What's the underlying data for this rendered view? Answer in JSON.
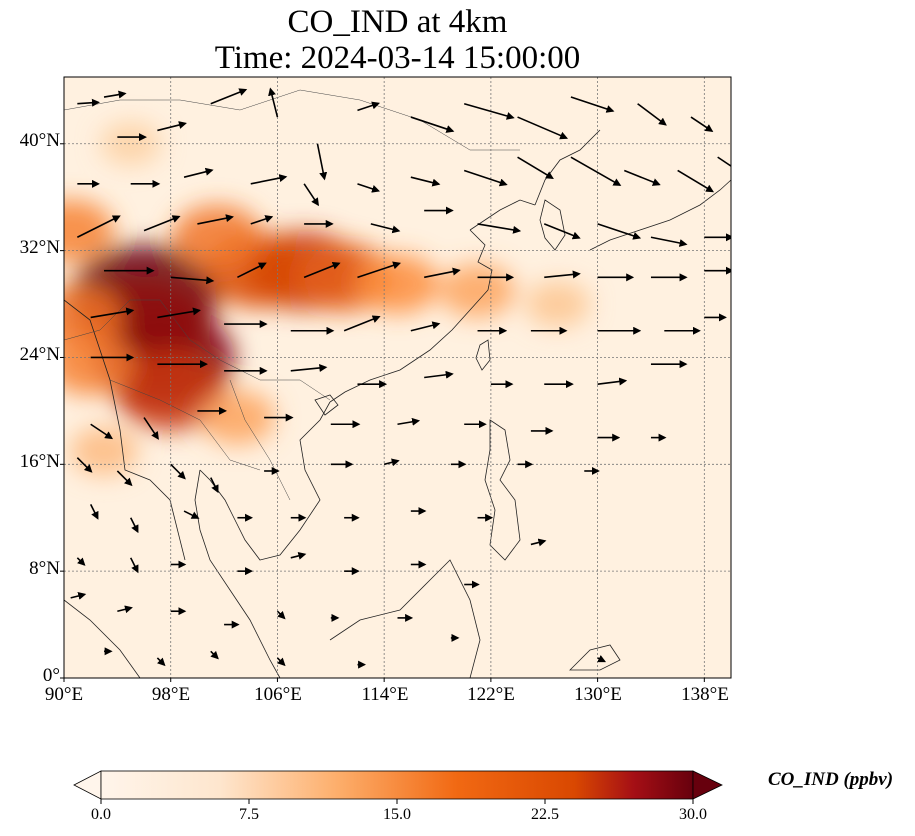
{
  "title": {
    "line1": "CO_IND at 4km",
    "line2": "Time: 2024-03-14 15:00:00"
  },
  "map": {
    "projection": "PlateCarree",
    "lon_range": [
      90,
      140
    ],
    "lat_range": [
      0,
      45
    ],
    "gridlines": true,
    "lat_ticks": [
      {
        "value": 0,
        "label": "0°"
      },
      {
        "value": 8,
        "label": "8°N"
      },
      {
        "value": 16,
        "label": "16°N"
      },
      {
        "value": 24,
        "label": "24°N"
      },
      {
        "value": 32,
        "label": "32°N"
      },
      {
        "value": 40,
        "label": "40°N"
      }
    ],
    "lon_ticks": [
      {
        "value": 90,
        "label": "90°E"
      },
      {
        "value": 98,
        "label": "98°E"
      },
      {
        "value": 106,
        "label": "106°E"
      },
      {
        "value": 114,
        "label": "114°E"
      },
      {
        "value": 122,
        "label": "122°E"
      },
      {
        "value": 130,
        "label": "130°E"
      },
      {
        "value": 138,
        "label": "138°E"
      }
    ],
    "colormap": [
      "#fff5eb",
      "#fdd0a2",
      "#fd8d3c",
      "#d94801",
      "#a50f15",
      "#67000d"
    ],
    "concentration_hotspots_ppbv": [
      {
        "lon": 96,
        "lat": 28.5,
        "value": 30
      },
      {
        "lon": 97.5,
        "lat": 24,
        "value": 28
      },
      {
        "lon": 96,
        "lat": 26.5,
        "value": 26
      },
      {
        "lon": 98,
        "lat": 21.5,
        "value": 20
      },
      {
        "lon": 108,
        "lat": 30.5,
        "value": 20
      },
      {
        "lon": 104.5,
        "lat": 30.5,
        "value": 18
      },
      {
        "lon": 111,
        "lat": 30,
        "value": 16
      },
      {
        "lon": 101.5,
        "lat": 33,
        "value": 14
      },
      {
        "lon": 90.5,
        "lat": 33.5,
        "value": 13
      },
      {
        "lon": 91,
        "lat": 27,
        "value": 14
      },
      {
        "lon": 115,
        "lat": 29.5,
        "value": 12
      },
      {
        "lon": 121,
        "lat": 29,
        "value": 10
      },
      {
        "lon": 92,
        "lat": 23.5,
        "value": 13
      },
      {
        "lon": 103,
        "lat": 19.5,
        "value": 10
      },
      {
        "lon": 127,
        "lat": 28,
        "value": 7
      },
      {
        "lon": 93,
        "lat": 17,
        "value": 8
      },
      {
        "lon": 95,
        "lat": 40,
        "value": 6
      }
    ],
    "wind_arrows": [
      {
        "lon": 91,
        "lat": 43,
        "u": 3,
        "v": 0.2
      },
      {
        "lon": 93,
        "lat": 43.5,
        "u": 3,
        "v": 0.5
      },
      {
        "lon": 94,
        "lat": 40.5,
        "u": 4,
        "v": 0
      },
      {
        "lon": 97,
        "lat": 41,
        "u": 4,
        "v": 1
      },
      {
        "lon": 101,
        "lat": 43,
        "u": 5,
        "v": 2
      },
      {
        "lon": 106,
        "lat": 42,
        "u": -1,
        "v": 4
      },
      {
        "lon": 109,
        "lat": 40,
        "u": 1,
        "v": -5
      },
      {
        "lon": 112,
        "lat": 42.5,
        "u": 3,
        "v": 1
      },
      {
        "lon": 116,
        "lat": 42,
        "u": 6,
        "v": -2
      },
      {
        "lon": 120,
        "lat": 43,
        "u": 7,
        "v": -2
      },
      {
        "lon": 124,
        "lat": 42,
        "u": 7,
        "v": -3
      },
      {
        "lon": 128,
        "lat": 43.5,
        "u": 6,
        "v": -2
      },
      {
        "lon": 133,
        "lat": 43,
        "u": 4,
        "v": -3
      },
      {
        "lon": 137,
        "lat": 42,
        "u": 3,
        "v": -2
      },
      {
        "lon": 91,
        "lat": 37,
        "u": 3,
        "v": 0
      },
      {
        "lon": 95,
        "lat": 37,
        "u": 4,
        "v": 0
      },
      {
        "lon": 99,
        "lat": 37.5,
        "u": 4,
        "v": 1
      },
      {
        "lon": 104,
        "lat": 37,
        "u": 5,
        "v": 1
      },
      {
        "lon": 108,
        "lat": 37,
        "u": 2,
        "v": -3
      },
      {
        "lon": 112,
        "lat": 37,
        "u": 3,
        "v": -1
      },
      {
        "lon": 116,
        "lat": 37.5,
        "u": 4,
        "v": -1
      },
      {
        "lon": 120,
        "lat": 38,
        "u": 6,
        "v": -2
      },
      {
        "lon": 124,
        "lat": 39,
        "u": 5,
        "v": -3
      },
      {
        "lon": 128,
        "lat": 39,
        "u": 7,
        "v": -4
      },
      {
        "lon": 132,
        "lat": 38,
        "u": 5,
        "v": -2
      },
      {
        "lon": 136,
        "lat": 38,
        "u": 5,
        "v": -3
      },
      {
        "lon": 139,
        "lat": 39,
        "u": 3,
        "v": -2
      },
      {
        "lon": 91,
        "lat": 33,
        "u": 6,
        "v": 3
      },
      {
        "lon": 96,
        "lat": 33.5,
        "u": 5,
        "v": 2
      },
      {
        "lon": 100,
        "lat": 34,
        "u": 5,
        "v": 1
      },
      {
        "lon": 104,
        "lat": 34,
        "u": 3,
        "v": 1
      },
      {
        "lon": 108,
        "lat": 34,
        "u": 4,
        "v": 0
      },
      {
        "lon": 113,
        "lat": 34,
        "u": 4,
        "v": -1
      },
      {
        "lon": 117,
        "lat": 35,
        "u": 4,
        "v": 0
      },
      {
        "lon": 121,
        "lat": 34,
        "u": 6,
        "v": -1
      },
      {
        "lon": 126,
        "lat": 34,
        "u": 5,
        "v": -2
      },
      {
        "lon": 130,
        "lat": 34,
        "u": 6,
        "v": -2
      },
      {
        "lon": 134,
        "lat": 33,
        "u": 5,
        "v": -1
      },
      {
        "lon": 138,
        "lat": 33,
        "u": 4,
        "v": 0
      },
      {
        "lon": 93,
        "lat": 30.5,
        "u": 7,
        "v": 0
      },
      {
        "lon": 98,
        "lat": 30,
        "u": 6,
        "v": -0.5
      },
      {
        "lon": 103,
        "lat": 30,
        "u": 4,
        "v": 2
      },
      {
        "lon": 108,
        "lat": 30,
        "u": 5,
        "v": 2
      },
      {
        "lon": 112,
        "lat": 30,
        "u": 6,
        "v": 2
      },
      {
        "lon": 117,
        "lat": 30,
        "u": 5,
        "v": 1
      },
      {
        "lon": 121,
        "lat": 30,
        "u": 5,
        "v": 0
      },
      {
        "lon": 126,
        "lat": 30,
        "u": 5,
        "v": 0.5
      },
      {
        "lon": 130,
        "lat": 30,
        "u": 5,
        "v": 0
      },
      {
        "lon": 134,
        "lat": 30,
        "u": 5,
        "v": 0
      },
      {
        "lon": 138,
        "lat": 30.5,
        "u": 4,
        "v": 0
      },
      {
        "lon": 92,
        "lat": 27,
        "u": 6,
        "v": 1
      },
      {
        "lon": 97,
        "lat": 27,
        "u": 6,
        "v": 1
      },
      {
        "lon": 102,
        "lat": 26.5,
        "u": 6,
        "v": 0
      },
      {
        "lon": 107,
        "lat": 26,
        "u": 6,
        "v": 0
      },
      {
        "lon": 111,
        "lat": 26,
        "u": 5,
        "v": 2
      },
      {
        "lon": 116,
        "lat": 26,
        "u": 4,
        "v": 1
      },
      {
        "lon": 121,
        "lat": 26,
        "u": 4,
        "v": 0
      },
      {
        "lon": 125,
        "lat": 26,
        "u": 5,
        "v": 0
      },
      {
        "lon": 130,
        "lat": 26,
        "u": 6,
        "v": 0
      },
      {
        "lon": 135,
        "lat": 26,
        "u": 5,
        "v": 0
      },
      {
        "lon": 138,
        "lat": 27,
        "u": 3,
        "v": 0
      },
      {
        "lon": 92,
        "lat": 24,
        "u": 6,
        "v": 0
      },
      {
        "lon": 97,
        "lat": 23.5,
        "u": 7,
        "v": 0
      },
      {
        "lon": 102,
        "lat": 23,
        "u": 6,
        "v": 0
      },
      {
        "lon": 107,
        "lat": 23,
        "u": 5,
        "v": 0.5
      },
      {
        "lon": 112,
        "lat": 22,
        "u": 4,
        "v": 0
      },
      {
        "lon": 117,
        "lat": 22.5,
        "u": 4,
        "v": 0.5
      },
      {
        "lon": 122,
        "lat": 22,
        "u": 3,
        "v": 0
      },
      {
        "lon": 126,
        "lat": 22,
        "u": 4,
        "v": 0
      },
      {
        "lon": 130,
        "lat": 22,
        "u": 4,
        "v": 0.5
      },
      {
        "lon": 134,
        "lat": 23.5,
        "u": 5,
        "v": 0
      },
      {
        "lon": 92,
        "lat": 19,
        "u": 3,
        "v": -2
      },
      {
        "lon": 96,
        "lat": 19.5,
        "u": 2,
        "v": -3
      },
      {
        "lon": 100,
        "lat": 20,
        "u": 4,
        "v": 0
      },
      {
        "lon": 105,
        "lat": 19.5,
        "u": 4,
        "v": 0
      },
      {
        "lon": 110,
        "lat": 19,
        "u": 4,
        "v": 0
      },
      {
        "lon": 115,
        "lat": 19,
        "u": 3,
        "v": 0.5
      },
      {
        "lon": 120,
        "lat": 19,
        "u": 3,
        "v": 0
      },
      {
        "lon": 125,
        "lat": 18.5,
        "u": 3,
        "v": 0
      },
      {
        "lon": 130,
        "lat": 18,
        "u": 3,
        "v": 0
      },
      {
        "lon": 134,
        "lat": 18,
        "u": 2,
        "v": 0
      },
      {
        "lon": 91,
        "lat": 16.5,
        "u": 2,
        "v": -2
      },
      {
        "lon": 94,
        "lat": 15.5,
        "u": 2,
        "v": -2
      },
      {
        "lon": 98,
        "lat": 16,
        "u": 2,
        "v": -2
      },
      {
        "lon": 101,
        "lat": 15,
        "u": 1,
        "v": -2
      },
      {
        "lon": 105,
        "lat": 15.5,
        "u": 2,
        "v": 0
      },
      {
        "lon": 110,
        "lat": 16,
        "u": 3,
        "v": 0
      },
      {
        "lon": 114,
        "lat": 16,
        "u": 2,
        "v": 0.5
      },
      {
        "lon": 119,
        "lat": 16,
        "u": 2,
        "v": 0
      },
      {
        "lon": 124,
        "lat": 16,
        "u": 2,
        "v": 0
      },
      {
        "lon": 129,
        "lat": 15.5,
        "u": 2,
        "v": 0
      },
      {
        "lon": 92,
        "lat": 13,
        "u": 1,
        "v": -2
      },
      {
        "lon": 95,
        "lat": 12,
        "u": 1,
        "v": -2
      },
      {
        "lon": 99,
        "lat": 12.5,
        "u": 2,
        "v": -1
      },
      {
        "lon": 103,
        "lat": 12,
        "u": 2,
        "v": 0
      },
      {
        "lon": 107,
        "lat": 12,
        "u": 2,
        "v": 0
      },
      {
        "lon": 111,
        "lat": 12,
        "u": 2,
        "v": 0
      },
      {
        "lon": 116,
        "lat": 12.5,
        "u": 2,
        "v": 0
      },
      {
        "lon": 121,
        "lat": 12,
        "u": 2,
        "v": 0
      },
      {
        "lon": 125,
        "lat": 10,
        "u": 2,
        "v": 0.5
      },
      {
        "lon": 91,
        "lat": 9,
        "u": 1,
        "v": -1
      },
      {
        "lon": 95,
        "lat": 9,
        "u": 1,
        "v": -2
      },
      {
        "lon": 98,
        "lat": 8.5,
        "u": 2,
        "v": 0
      },
      {
        "lon": 103,
        "lat": 8,
        "u": 2,
        "v": 0
      },
      {
        "lon": 107,
        "lat": 9,
        "u": 2,
        "v": 0.5
      },
      {
        "lon": 111,
        "lat": 8,
        "u": 2,
        "v": 0
      },
      {
        "lon": 116,
        "lat": 8.5,
        "u": 2,
        "v": 0
      },
      {
        "lon": 120,
        "lat": 7,
        "u": 2,
        "v": 0
      },
      {
        "lon": 90.5,
        "lat": 6,
        "u": 2,
        "v": 0.5
      },
      {
        "lon": 94,
        "lat": 5,
        "u": 2,
        "v": 0.5
      },
      {
        "lon": 98,
        "lat": 5,
        "u": 2,
        "v": 0
      },
      {
        "lon": 102,
        "lat": 4,
        "u": 2,
        "v": 0
      },
      {
        "lon": 106,
        "lat": 5,
        "u": 1,
        "v": -1
      },
      {
        "lon": 110,
        "lat": 4.5,
        "u": 1,
        "v": 0
      },
      {
        "lon": 115,
        "lat": 4.5,
        "u": 2,
        "v": 0
      },
      {
        "lon": 119,
        "lat": 3,
        "u": 1,
        "v": 0
      },
      {
        "lon": 93,
        "lat": 2,
        "u": 1,
        "v": 0
      },
      {
        "lon": 97,
        "lat": 1.5,
        "u": 1,
        "v": -1
      },
      {
        "lon": 101,
        "lat": 2,
        "u": 1,
        "v": -1
      },
      {
        "lon": 106,
        "lat": 1.5,
        "u": 1,
        "v": -1
      },
      {
        "lon": 112,
        "lat": 1,
        "u": 1,
        "v": 0
      },
      {
        "lon": 130,
        "lat": 1.5,
        "u": 1,
        "v": -0.5
      }
    ]
  },
  "colorbar": {
    "label": "CO_IND (ppbv)",
    "min": 0,
    "max": 30,
    "extend": "both",
    "ticks": [
      "0.0",
      "7.5",
      "15.0",
      "22.5",
      "30.0"
    ]
  }
}
